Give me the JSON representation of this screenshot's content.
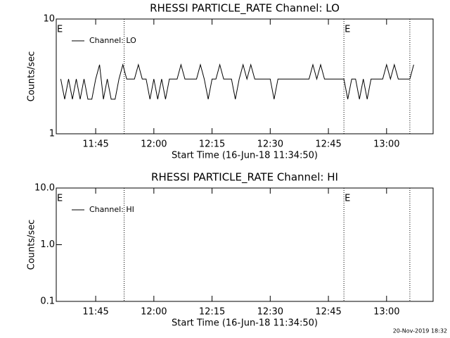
{
  "chart_data": [
    {
      "type": "line",
      "title": "RHESSI PARTICLE_RATE Channel: LO",
      "xlabel": "Start Time (16-Jun-18 11:34:50)",
      "ylabel": "Counts/sec",
      "log_y": true,
      "ylim": [
        1,
        10
      ],
      "yticks": [
        1,
        10
      ],
      "xlim": [
        "11:34:50",
        "13:12"
      ],
      "xticks": [
        "11:45",
        "12:00",
        "12:15",
        "12:30",
        "12:45",
        "13:00"
      ],
      "events": [
        "11:52:20",
        "12:49",
        "13:06"
      ],
      "annotations": [
        {
          "text": "E",
          "x": "11:34:50"
        },
        {
          "text": "E",
          "x": "12:49"
        }
      ],
      "legend": "upper left",
      "x": [
        "11:36",
        "11:37",
        "11:38",
        "11:39",
        "11:40",
        "11:41",
        "11:42",
        "11:43",
        "11:44",
        "11:45",
        "11:46",
        "11:47",
        "11:48",
        "11:49",
        "11:50",
        "11:51",
        "11:52",
        "11:53",
        "11:54",
        "11:55",
        "11:56",
        "11:57",
        "11:58",
        "11:59",
        "12:00",
        "12:01",
        "12:02",
        "12:03",
        "12:04",
        "12:05",
        "12:06",
        "12:07",
        "12:08",
        "12:09",
        "12:10",
        "12:11",
        "12:12",
        "12:13",
        "12:14",
        "12:15",
        "12:16",
        "12:17",
        "12:18",
        "12:19",
        "12:20",
        "12:21",
        "12:22",
        "12:23",
        "12:24",
        "12:25",
        "12:26",
        "12:27",
        "12:28",
        "12:29",
        "12:30",
        "12:31",
        "12:32",
        "12:33",
        "12:34",
        "12:35",
        "12:36",
        "12:37",
        "12:38",
        "12:39",
        "12:40",
        "12:41",
        "12:42",
        "12:43",
        "12:44",
        "12:45",
        "12:46",
        "12:47",
        "12:48",
        "12:49",
        "12:50",
        "12:51",
        "12:52",
        "12:53",
        "12:54",
        "12:55",
        "12:56",
        "12:57",
        "12:58",
        "12:59",
        "13:00",
        "13:01",
        "13:02",
        "13:03",
        "13:04",
        "13:05",
        "13:06",
        "13:07"
      ],
      "series": [
        {
          "name": "Channel: LO",
          "color": "#000000",
          "values": [
            3,
            2,
            3,
            2,
            3,
            2,
            3,
            2,
            2,
            3,
            4,
            2,
            3,
            2,
            2,
            3,
            4,
            3,
            3,
            3,
            4,
            3,
            3,
            2,
            3,
            2,
            3,
            2,
            3,
            3,
            3,
            4,
            3,
            3,
            3,
            3,
            4,
            3,
            2,
            3,
            3,
            4,
            3,
            3,
            3,
            2,
            3,
            4,
            3,
            4,
            3,
            3,
            3,
            3,
            3,
            2,
            3,
            3,
            3,
            3,
            3,
            3,
            3,
            3,
            3,
            4,
            3,
            4,
            3,
            3,
            3,
            3,
            3,
            3,
            2,
            3,
            3,
            2,
            3,
            2,
            3,
            3,
            3,
            3,
            4,
            3,
            4,
            3,
            3,
            3,
            3,
            4
          ]
        }
      ]
    },
    {
      "type": "line",
      "title": "RHESSI PARTICLE_RATE Channel: HI",
      "xlabel": "Start Time (16-Jun-18 11:34:50)",
      "ylabel": "Counts/sec",
      "log_y": true,
      "ylim": [
        0.1,
        10
      ],
      "yticks": [
        {
          "value": 0.1,
          "label": "0.1"
        },
        {
          "value": 1,
          "label": "1.0"
        },
        {
          "value": 10,
          "label": "10.0"
        }
      ],
      "xlim": [
        "11:34:50",
        "13:12"
      ],
      "xticks": [
        "11:45",
        "12:00",
        "12:15",
        "12:30",
        "12:45",
        "13:00"
      ],
      "events": [
        "11:52:20",
        "12:49",
        "13:06"
      ],
      "annotations": [
        {
          "text": "E",
          "x": "11:34:50"
        },
        {
          "text": "E",
          "x": "12:49"
        }
      ],
      "legend": "upper left",
      "x": [],
      "series": [
        {
          "name": "Channel: HI",
          "color": "#000000",
          "values": []
        }
      ]
    }
  ],
  "footer": "20-Nov-2019 18:32"
}
